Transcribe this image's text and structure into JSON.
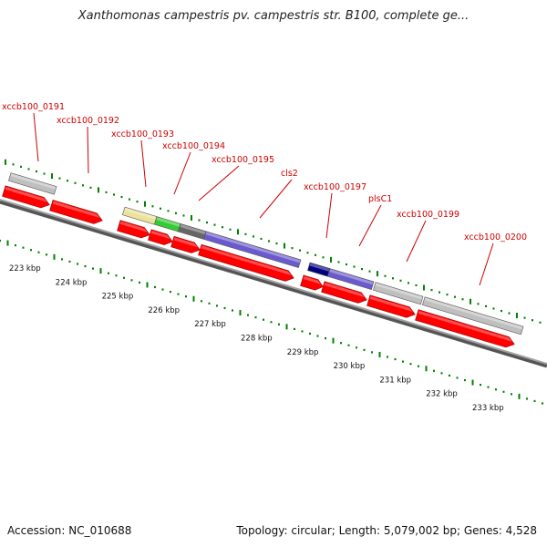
{
  "title": "Xanthomonas campestris pv. campestris str. B100, complete ge...",
  "footer": {
    "accession": "Accession: NC_010688",
    "topology": "Topology: circular; Length: 5,079,002 bp; Genes: 4,528"
  },
  "colors": {
    "cds_arrow": "#ff0000",
    "backbone": "#808080",
    "tick": "#008000",
    "label": "#cc0000",
    "gray_feature": "#bfbfbf",
    "yellow_feature": "#ece29a",
    "green_feature": "#33cc33",
    "darkgray_feature": "#666666",
    "purple_feature": "#6a5acd",
    "navy_feature": "#000080"
  },
  "genes": [
    {
      "label": "xccb100_0191",
      "feature": "gray"
    },
    {
      "label": "xccb100_0192",
      "feature": "none"
    },
    {
      "label": "xccb100_0193",
      "feature": "yellow"
    },
    {
      "label": "xccb100_0194",
      "feature": "green"
    },
    {
      "label": "xccb100_0195",
      "feature": "darkgray"
    },
    {
      "label": "cls2",
      "feature": "purple"
    },
    {
      "label": "xccb100_0197",
      "feature": "navy"
    },
    {
      "label": "plsC1",
      "feature": "purple"
    },
    {
      "label": "xccb100_0199",
      "feature": "gray"
    },
    {
      "label": "xccb100_0200",
      "feature": "gray"
    }
  ],
  "scale_labels": [
    "223 kbp",
    "224 kbp",
    "225 kbp",
    "226 kbp",
    "227 kbp",
    "228 kbp",
    "229 kbp",
    "230 kbp",
    "231 kbp",
    "232 kbp",
    "233 kbp"
  ]
}
